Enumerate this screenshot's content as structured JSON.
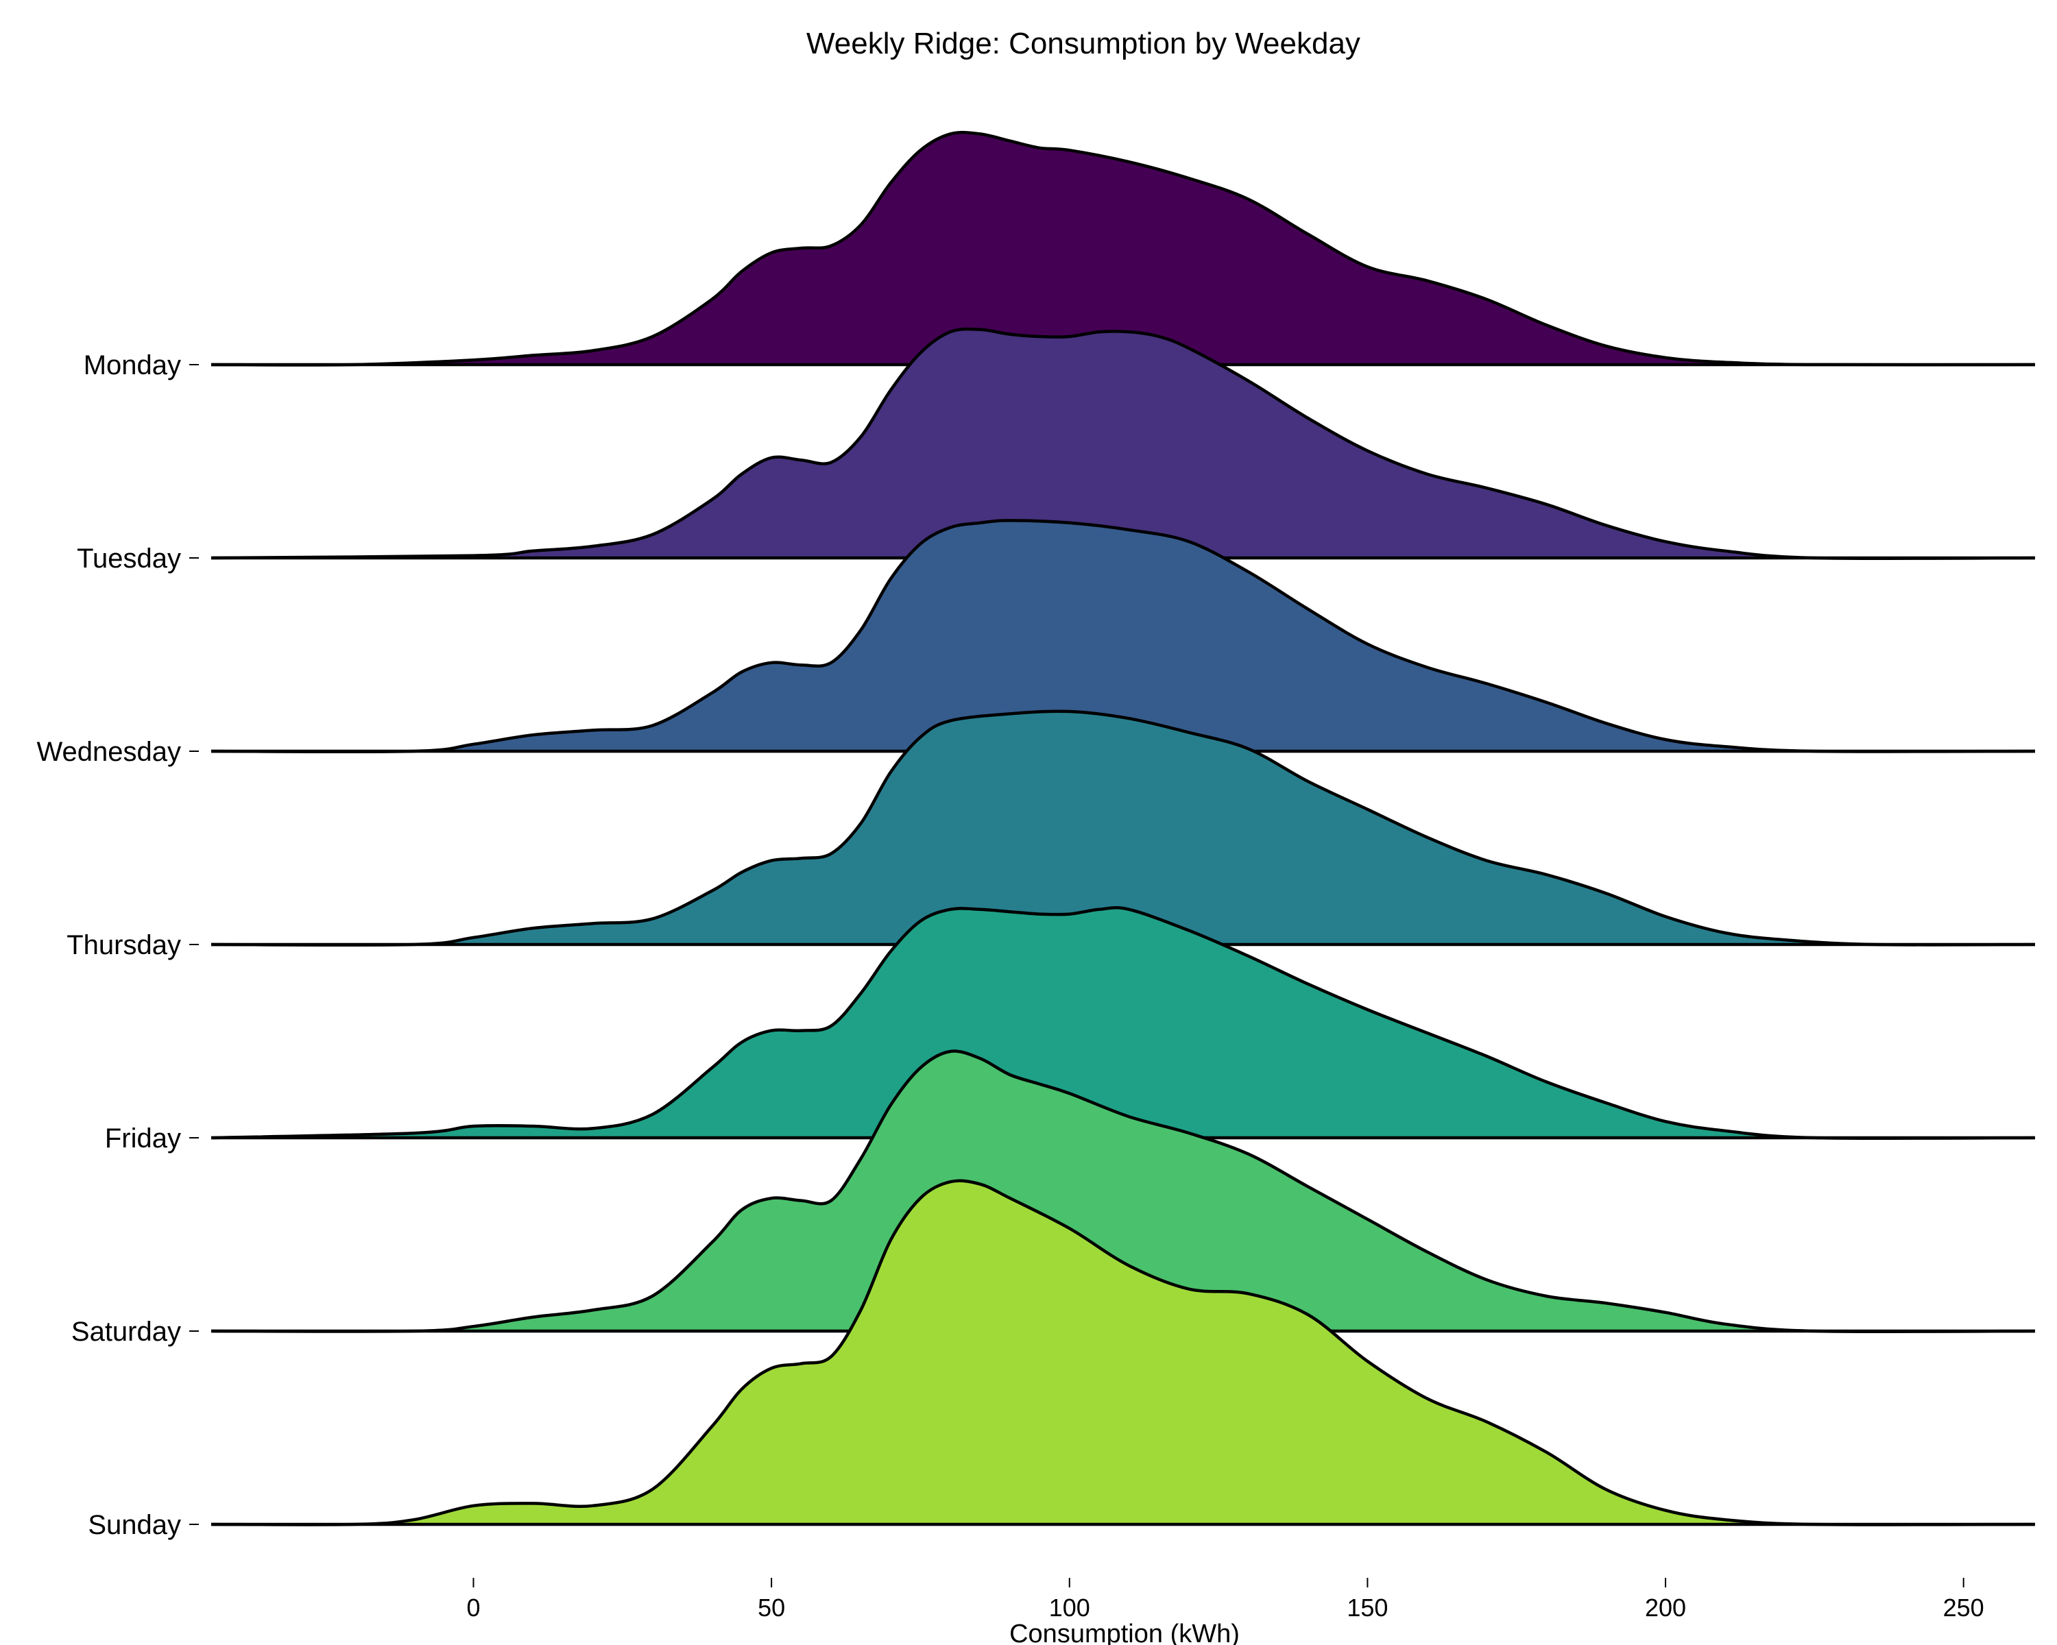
{
  "chart_data": {
    "type": "ridgeline",
    "title": "Weekly Ridge: Consumption by Weekday",
    "xlabel": "Consumption (kWh)",
    "ylabel": "",
    "xlim": [
      -44,
      262
    ],
    "xticks": [
      0,
      50,
      100,
      150,
      200,
      250
    ],
    "grid": false,
    "legend": "none",
    "series": [
      {
        "name": "Monday",
        "color": "#440154",
        "points": [
          [
            -44,
            0
          ],
          [
            -20,
            0
          ],
          [
            0,
            0.02
          ],
          [
            10,
            0.04
          ],
          [
            20,
            0.06
          ],
          [
            30,
            0.12
          ],
          [
            40,
            0.28
          ],
          [
            45,
            0.4
          ],
          [
            50,
            0.48
          ],
          [
            55,
            0.5
          ],
          [
            60,
            0.51
          ],
          [
            65,
            0.6
          ],
          [
            70,
            0.78
          ],
          [
            75,
            0.92
          ],
          [
            80,
            0.99
          ],
          [
            85,
            0.99
          ],
          [
            90,
            0.96
          ],
          [
            95,
            0.93
          ],
          [
            100,
            0.92
          ],
          [
            110,
            0.87
          ],
          [
            120,
            0.8
          ],
          [
            130,
            0.71
          ],
          [
            140,
            0.56
          ],
          [
            150,
            0.42
          ],
          [
            160,
            0.36
          ],
          [
            170,
            0.28
          ],
          [
            180,
            0.17
          ],
          [
            190,
            0.08
          ],
          [
            200,
            0.03
          ],
          [
            210,
            0.01
          ],
          [
            225,
            0
          ],
          [
            262,
            0
          ]
        ]
      },
      {
        "name": "Tuesday",
        "color": "#46327e",
        "points": [
          [
            -44,
            0
          ],
          [
            0,
            0.01
          ],
          [
            10,
            0.03
          ],
          [
            20,
            0.05
          ],
          [
            30,
            0.1
          ],
          [
            40,
            0.25
          ],
          [
            45,
            0.36
          ],
          [
            50,
            0.43
          ],
          [
            55,
            0.42
          ],
          [
            60,
            0.41
          ],
          [
            65,
            0.52
          ],
          [
            70,
            0.72
          ],
          [
            75,
            0.88
          ],
          [
            80,
            0.97
          ],
          [
            85,
            0.98
          ],
          [
            90,
            0.96
          ],
          [
            95,
            0.95
          ],
          [
            100,
            0.95
          ],
          [
            105,
            0.97
          ],
          [
            110,
            0.97
          ],
          [
            115,
            0.95
          ],
          [
            120,
            0.9
          ],
          [
            130,
            0.76
          ],
          [
            140,
            0.6
          ],
          [
            150,
            0.46
          ],
          [
            160,
            0.36
          ],
          [
            170,
            0.3
          ],
          [
            180,
            0.23
          ],
          [
            190,
            0.14
          ],
          [
            200,
            0.07
          ],
          [
            210,
            0.03
          ],
          [
            225,
            0
          ],
          [
            262,
            0
          ]
        ]
      },
      {
        "name": "Wednesday",
        "color": "#365c8d",
        "points": [
          [
            -44,
            0
          ],
          [
            -10,
            0
          ],
          [
            0,
            0.03
          ],
          [
            10,
            0.07
          ],
          [
            20,
            0.09
          ],
          [
            30,
            0.11
          ],
          [
            40,
            0.25
          ],
          [
            45,
            0.34
          ],
          [
            50,
            0.38
          ],
          [
            55,
            0.37
          ],
          [
            60,
            0.38
          ],
          [
            65,
            0.52
          ],
          [
            70,
            0.74
          ],
          [
            75,
            0.89
          ],
          [
            80,
            0.96
          ],
          [
            85,
            0.98
          ],
          [
            90,
            0.99
          ],
          [
            100,
            0.98
          ],
          [
            110,
            0.95
          ],
          [
            120,
            0.9
          ],
          [
            130,
            0.77
          ],
          [
            140,
            0.61
          ],
          [
            150,
            0.46
          ],
          [
            160,
            0.36
          ],
          [
            170,
            0.29
          ],
          [
            180,
            0.21
          ],
          [
            190,
            0.12
          ],
          [
            200,
            0.05
          ],
          [
            210,
            0.02
          ],
          [
            225,
            0
          ],
          [
            262,
            0
          ]
        ]
      },
      {
        "name": "Thursday",
        "color": "#277f8e",
        "points": [
          [
            -44,
            0
          ],
          [
            -10,
            0
          ],
          [
            0,
            0.03
          ],
          [
            10,
            0.07
          ],
          [
            20,
            0.09
          ],
          [
            30,
            0.11
          ],
          [
            40,
            0.23
          ],
          [
            45,
            0.31
          ],
          [
            50,
            0.36
          ],
          [
            55,
            0.37
          ],
          [
            60,
            0.39
          ],
          [
            65,
            0.52
          ],
          [
            70,
            0.74
          ],
          [
            75,
            0.89
          ],
          [
            80,
            0.96
          ],
          [
            90,
            0.99
          ],
          [
            100,
            1.0
          ],
          [
            110,
            0.97
          ],
          [
            120,
            0.91
          ],
          [
            130,
            0.84
          ],
          [
            140,
            0.7
          ],
          [
            150,
            0.58
          ],
          [
            160,
            0.46
          ],
          [
            170,
            0.36
          ],
          [
            180,
            0.3
          ],
          [
            190,
            0.22
          ],
          [
            200,
            0.12
          ],
          [
            210,
            0.05
          ],
          [
            220,
            0.02
          ],
          [
            235,
            0
          ],
          [
            262,
            0
          ]
        ]
      },
      {
        "name": "Friday",
        "color": "#1fa187",
        "points": [
          [
            -44,
            0
          ],
          [
            -10,
            0.02
          ],
          [
            0,
            0.05
          ],
          [
            10,
            0.05
          ],
          [
            20,
            0.04
          ],
          [
            30,
            0.1
          ],
          [
            40,
            0.3
          ],
          [
            45,
            0.41
          ],
          [
            50,
            0.46
          ],
          [
            55,
            0.46
          ],
          [
            60,
            0.48
          ],
          [
            65,
            0.62
          ],
          [
            70,
            0.8
          ],
          [
            75,
            0.93
          ],
          [
            80,
            0.98
          ],
          [
            85,
            0.98
          ],
          [
            90,
            0.97
          ],
          [
            95,
            0.96
          ],
          [
            100,
            0.96
          ],
          [
            105,
            0.98
          ],
          [
            110,
            0.98
          ],
          [
            120,
            0.89
          ],
          [
            130,
            0.78
          ],
          [
            140,
            0.66
          ],
          [
            150,
            0.55
          ],
          [
            160,
            0.45
          ],
          [
            170,
            0.35
          ],
          [
            180,
            0.24
          ],
          [
            190,
            0.15
          ],
          [
            200,
            0.07
          ],
          [
            210,
            0.03
          ],
          [
            225,
            0
          ],
          [
            262,
            0
          ]
        ]
      },
      {
        "name": "Saturday",
        "color": "#4ac16d",
        "points": [
          [
            -44,
            0
          ],
          [
            -10,
            0
          ],
          [
            0,
            0.02
          ],
          [
            10,
            0.06
          ],
          [
            20,
            0.09
          ],
          [
            30,
            0.15
          ],
          [
            40,
            0.38
          ],
          [
            45,
            0.52
          ],
          [
            50,
            0.57
          ],
          [
            55,
            0.56
          ],
          [
            60,
            0.56
          ],
          [
            65,
            0.74
          ],
          [
            70,
            0.97
          ],
          [
            75,
            1.13
          ],
          [
            80,
            1.2
          ],
          [
            85,
            1.17
          ],
          [
            90,
            1.1
          ],
          [
            95,
            1.06
          ],
          [
            100,
            1.02
          ],
          [
            110,
            0.92
          ],
          [
            120,
            0.85
          ],
          [
            130,
            0.76
          ],
          [
            140,
            0.62
          ],
          [
            150,
            0.48
          ],
          [
            160,
            0.34
          ],
          [
            170,
            0.22
          ],
          [
            180,
            0.15
          ],
          [
            190,
            0.12
          ],
          [
            200,
            0.08
          ],
          [
            210,
            0.03
          ],
          [
            225,
            0
          ],
          [
            262,
            0
          ]
        ]
      },
      {
        "name": "Sunday",
        "color": "#a0da39",
        "points": [
          [
            -44,
            0
          ],
          [
            -20,
            0
          ],
          [
            -10,
            0.02
          ],
          [
            0,
            0.08
          ],
          [
            10,
            0.09
          ],
          [
            20,
            0.08
          ],
          [
            30,
            0.15
          ],
          [
            40,
            0.42
          ],
          [
            45,
            0.58
          ],
          [
            50,
            0.67
          ],
          [
            55,
            0.69
          ],
          [
            60,
            0.72
          ],
          [
            65,
            0.92
          ],
          [
            70,
            1.22
          ],
          [
            75,
            1.4
          ],
          [
            80,
            1.47
          ],
          [
            85,
            1.46
          ],
          [
            90,
            1.4
          ],
          [
            100,
            1.27
          ],
          [
            110,
            1.11
          ],
          [
            120,
            1.01
          ],
          [
            130,
            0.99
          ],
          [
            140,
            0.9
          ],
          [
            150,
            0.7
          ],
          [
            160,
            0.54
          ],
          [
            170,
            0.44
          ],
          [
            180,
            0.31
          ],
          [
            190,
            0.15
          ],
          [
            200,
            0.06
          ],
          [
            210,
            0.02
          ],
          [
            225,
            0
          ],
          [
            262,
            0
          ]
        ]
      }
    ]
  }
}
